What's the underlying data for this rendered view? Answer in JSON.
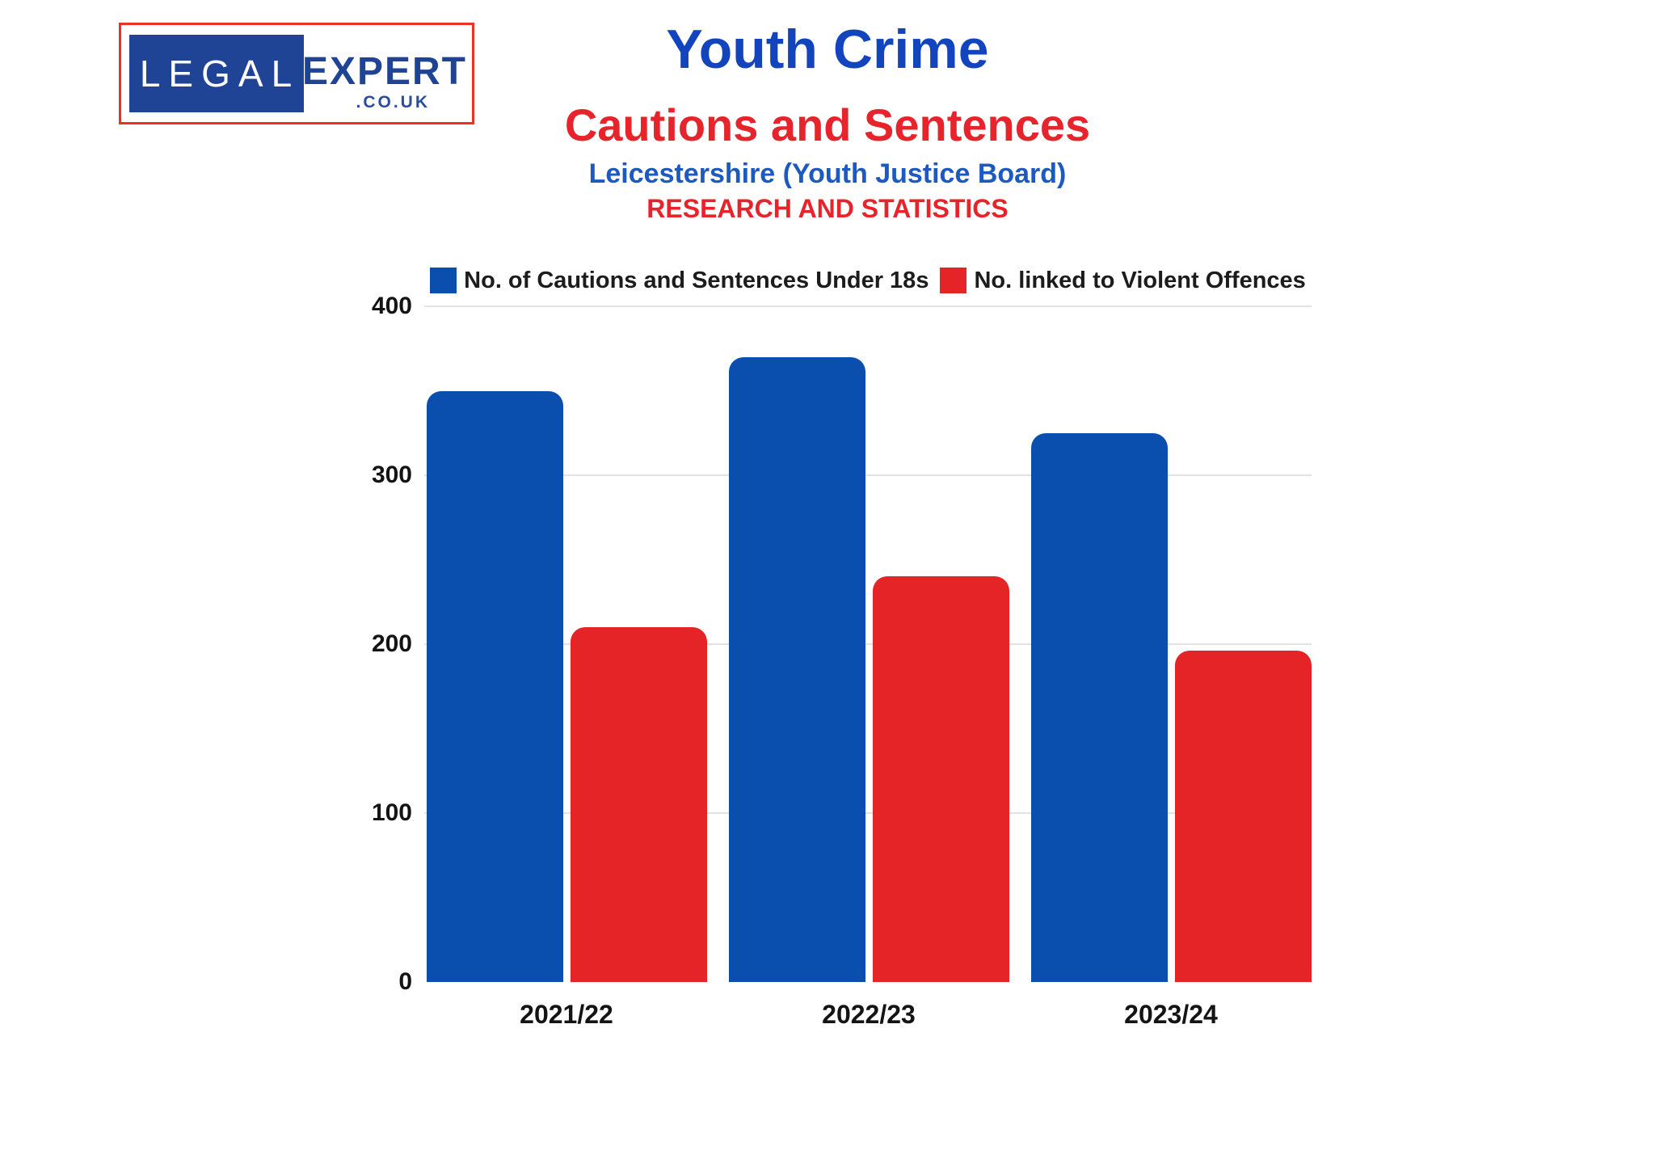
{
  "logo": {
    "legal": "LEGAL",
    "expert": "EXPERT",
    "tld": ".CO.UK"
  },
  "header": {
    "title": "Youth Crime",
    "subtitle": "Cautions and Sentences",
    "region": "Leicestershire (Youth Justice Board)",
    "tagline": "RESEARCH AND STATISTICS"
  },
  "colors": {
    "title_blue": "#1144bd",
    "subtitle_red": "#e7232b",
    "region_blue": "#1c59c0",
    "logo_border_red": "#eb3223",
    "logo_blue": "#1f4496",
    "bar_blue": "#0a4fae",
    "bar_red": "#e42427",
    "gridline": "#e2e2e6"
  },
  "chart_data": {
    "type": "bar",
    "categories": [
      "2021/22",
      "2022/23",
      "2023/24"
    ],
    "series": [
      {
        "name": "No. of Cautions and Sentences Under 18s",
        "color": "#0a4fae",
        "values": [
          350,
          370,
          325
        ]
      },
      {
        "name": "No. linked to Violent Offences",
        "color": "#e42427",
        "values": [
          210,
          240,
          196
        ]
      }
    ],
    "title": "Youth Crime — Cautions and Sentences",
    "xlabel": "",
    "ylabel": "",
    "ylim": [
      0,
      400
    ],
    "yticks": [
      0,
      100,
      200,
      300,
      400
    ],
    "grid": true,
    "legend_position": "top"
  }
}
